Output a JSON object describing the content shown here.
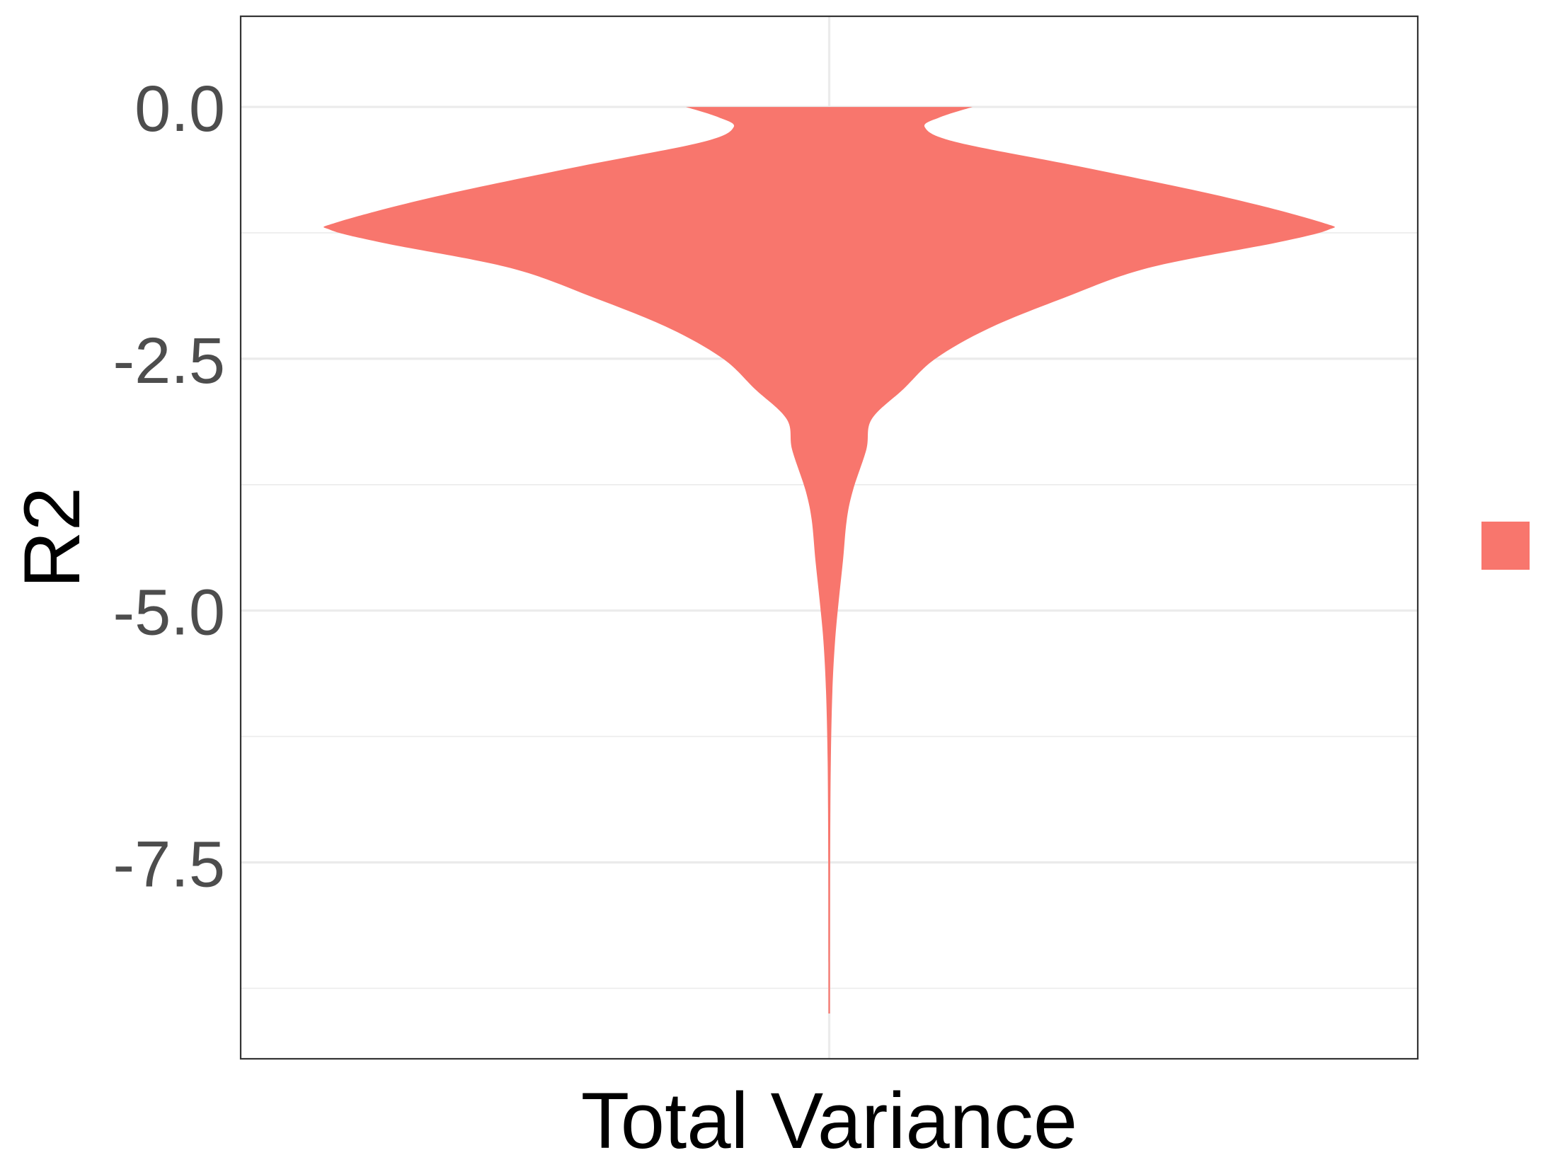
{
  "chart_data": {
    "type": "violin",
    "title": "",
    "xlabel": "Total Variance",
    "ylabel": "R2",
    "categories": [
      ""
    ],
    "ylim": [
      -9.45,
      0.9
    ],
    "yticks": [
      0.0,
      -2.5,
      -5.0,
      -7.5
    ],
    "ytick_labels": [
      "0.0",
      "-2.5",
      "-5.0",
      "-7.5"
    ],
    "minor_grid": [
      -1.25,
      -3.75,
      -6.25,
      -8.75
    ],
    "grid": true,
    "legend_position": "right",
    "series": [
      {
        "color": "#F8766D",
        "max_value": 0.0,
        "min_value": -9.0,
        "density_profile": [
          {
            "y": 0.0,
            "w": 0.27
          },
          {
            "y": -0.1,
            "w": 0.21
          },
          {
            "y": -0.2,
            "w": 0.18
          },
          {
            "y": -0.35,
            "w": 0.24
          },
          {
            "y": -0.6,
            "w": 0.48
          },
          {
            "y": -0.9,
            "w": 0.75
          },
          {
            "y": -1.15,
            "w": 0.93
          },
          {
            "y": -1.22,
            "w": 0.94
          },
          {
            "y": -1.35,
            "w": 0.84
          },
          {
            "y": -1.6,
            "w": 0.6
          },
          {
            "y": -1.9,
            "w": 0.44
          },
          {
            "y": -2.2,
            "w": 0.3
          },
          {
            "y": -2.5,
            "w": 0.2
          },
          {
            "y": -2.8,
            "w": 0.14
          },
          {
            "y": -3.1,
            "w": 0.08
          },
          {
            "y": -3.4,
            "w": 0.07
          },
          {
            "y": -3.8,
            "w": 0.045
          },
          {
            "y": -4.1,
            "w": 0.033
          },
          {
            "y": -4.5,
            "w": 0.026
          },
          {
            "y": -4.9,
            "w": 0.018
          },
          {
            "y": -5.3,
            "w": 0.011
          },
          {
            "y": -5.8,
            "w": 0.006
          },
          {
            "y": -6.5,
            "w": 0.003
          },
          {
            "y": -7.5,
            "w": 0.0018
          },
          {
            "y": -8.5,
            "w": 0.0015
          },
          {
            "y": -9.0,
            "w": 0.0015
          }
        ]
      }
    ]
  }
}
